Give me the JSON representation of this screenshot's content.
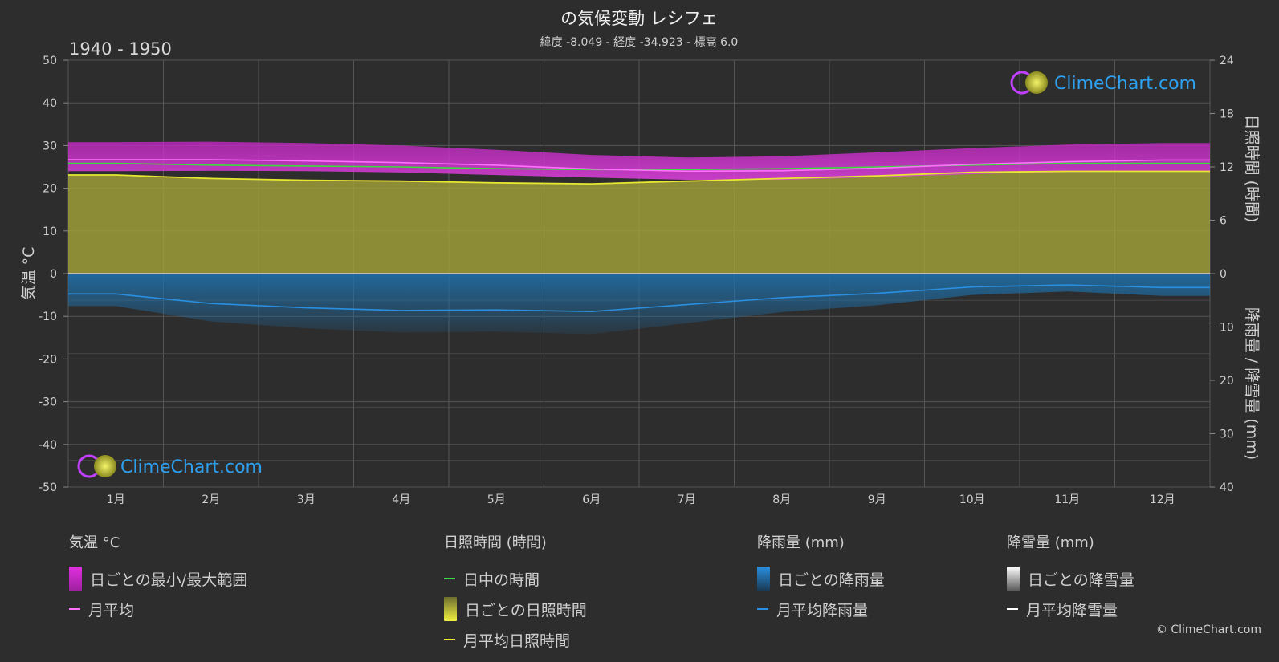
{
  "header": {
    "title": "の気候変動 レシフェ",
    "subtitle": "緯度 -8.049 - 経度 -34.923 - 標高 6.0",
    "period": "1940 - 1950"
  },
  "watermark": "ClimeChart.com",
  "copyright": "© ClimeChart.com",
  "colors": {
    "background": "#2d2d2d",
    "temp_range": "#d02bd0",
    "temp_mean": "#ff70ff",
    "daylight": "#3ddc3d",
    "sunshine_fill": "#a8a83a",
    "sunshine_mean": "#e8e832",
    "rain_fill": "#1f6fa8",
    "rain_mean": "#2a8fe0",
    "snow_mean": "#ffffff"
  },
  "chart_data": {
    "type": "area",
    "categories": [
      "1月",
      "2月",
      "3月",
      "4月",
      "5月",
      "6月",
      "7月",
      "8月",
      "9月",
      "10月",
      "11月",
      "12月"
    ],
    "axes": {
      "left": {
        "label": "気温 °C",
        "ticks": [
          "50",
          "40",
          "30",
          "20",
          "10",
          "0",
          "-10",
          "-20",
          "-30",
          "-40",
          "-50"
        ],
        "range": [
          -50,
          50
        ]
      },
      "right_top": {
        "label": "日照時間 (時間)",
        "ticks": [
          "24",
          "18",
          "12",
          "6",
          "0"
        ],
        "range": [
          0,
          24
        ]
      },
      "right_bottom": {
        "label": "降雨量 / 降雪量 (mm)",
        "ticks": [
          "10",
          "20",
          "30",
          "40"
        ],
        "range": [
          0,
          40
        ]
      }
    },
    "grid": true,
    "series": [
      {
        "name": "日ごとの最小/最大範囲",
        "kind": "temp_band",
        "min": [
          24.0,
          24.1,
          24.0,
          23.7,
          23.1,
          22.5,
          22.0,
          22.0,
          22.6,
          23.3,
          23.8,
          24.0
        ],
        "max": [
          30.8,
          30.9,
          30.6,
          30.0,
          29.0,
          27.8,
          27.2,
          27.5,
          28.4,
          29.4,
          30.2,
          30.6
        ]
      },
      {
        "name": "月平均",
        "kind": "temp_mean",
        "values": [
          26.7,
          26.7,
          26.4,
          26.0,
          25.4,
          24.5,
          24.0,
          24.1,
          24.7,
          25.6,
          26.2,
          26.6
        ]
      },
      {
        "name": "日中の時間",
        "kind": "daylight",
        "values": [
          12.4,
          12.2,
          12.1,
          12.0,
          11.8,
          11.7,
          11.7,
          11.8,
          12.0,
          12.2,
          12.4,
          12.4
        ]
      },
      {
        "name": "月平均日照時間",
        "kind": "sunshine",
        "values": [
          11.1,
          10.7,
          10.5,
          10.4,
          10.2,
          10.1,
          10.4,
          10.7,
          11.0,
          11.4,
          11.5,
          11.5
        ]
      },
      {
        "name": "月平均降雨量",
        "kind": "rain",
        "values": [
          3.8,
          5.6,
          6.4,
          6.9,
          6.8,
          7.1,
          5.8,
          4.5,
          3.7,
          2.5,
          2.1,
          2.6
        ]
      },
      {
        "name": "月平均降雪量",
        "kind": "snow",
        "values": [
          0,
          0,
          0,
          0,
          0,
          0,
          0,
          0,
          0,
          0,
          0,
          0
        ]
      }
    ]
  },
  "legend": {
    "temp": {
      "header": "気温 °C",
      "range": "日ごとの最小/最大範囲",
      "mean": "月平均"
    },
    "sun": {
      "header": "日照時間 (時間)",
      "daylight": "日中の時間",
      "daily": "日ごとの日照時間",
      "mean": "月平均日照時間"
    },
    "rain": {
      "header": "降雨量 (mm)",
      "daily": "日ごとの降雨量",
      "mean": "月平均降雨量"
    },
    "snow": {
      "header": "降雪量 (mm)",
      "daily": "日ごとの降雪量",
      "mean": "月平均降雪量"
    }
  }
}
